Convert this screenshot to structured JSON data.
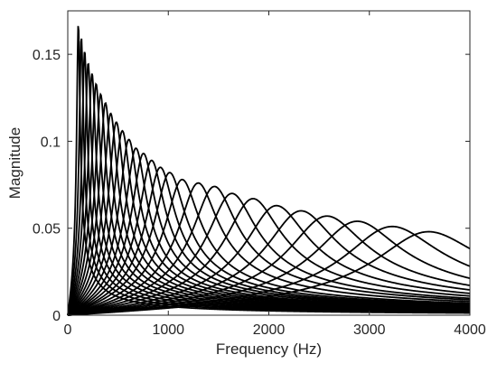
{
  "chart_data": {
    "type": "line",
    "title": "",
    "xlabel": "Frequency (Hz)",
    "ylabel": "Magnitude",
    "xlim": [
      0,
      4000
    ],
    "ylim": [
      0,
      0.175
    ],
    "xticks": [
      0,
      1000,
      2000,
      3000,
      4000
    ],
    "xtick_labels": [
      "0",
      "1000",
      "2000",
      "3000",
      "4000"
    ],
    "yticks": [
      0,
      0.05,
      0.1,
      0.15
    ],
    "ytick_labels": [
      "0",
      "0.05",
      "0.1",
      "0.15"
    ],
    "grid": false,
    "box": true,
    "line_color": "#000000",
    "axis_color": "#262626",
    "series": [
      {
        "center_hz": 105,
        "peak": 0.168
      },
      {
        "center_hz": 135,
        "peak": 0.16
      },
      {
        "center_hz": 168,
        "peak": 0.152
      },
      {
        "center_hz": 203,
        "peak": 0.145
      },
      {
        "center_hz": 241,
        "peak": 0.139
      },
      {
        "center_hz": 282,
        "peak": 0.133
      },
      {
        "center_hz": 327,
        "peak": 0.127
      },
      {
        "center_hz": 375,
        "peak": 0.122
      },
      {
        "center_hz": 427,
        "peak": 0.116
      },
      {
        "center_hz": 483,
        "peak": 0.111
      },
      {
        "center_hz": 543,
        "peak": 0.106
      },
      {
        "center_hz": 608,
        "peak": 0.101
      },
      {
        "center_hz": 678,
        "peak": 0.096
      },
      {
        "center_hz": 753,
        "peak": 0.093
      },
      {
        "center_hz": 834,
        "peak": 0.089
      },
      {
        "center_hz": 921,
        "peak": 0.085
      },
      {
        "center_hz": 1014,
        "peak": 0.082
      },
      {
        "center_hz": 1138,
        "peak": 0.078
      },
      {
        "center_hz": 1298,
        "peak": 0.076
      },
      {
        "center_hz": 1459,
        "peak": 0.074
      },
      {
        "center_hz": 1633,
        "peak": 0.07
      },
      {
        "center_hz": 1843,
        "peak": 0.067
      },
      {
        "center_hz": 2076,
        "peak": 0.063
      },
      {
        "center_hz": 2321,
        "peak": 0.06
      },
      {
        "center_hz": 2578,
        "peak": 0.057
      },
      {
        "center_hz": 2880,
        "peak": 0.054
      },
      {
        "center_hz": 3228,
        "peak": 0.051
      },
      {
        "center_hz": 3590,
        "peak": 0.048
      }
    ]
  }
}
